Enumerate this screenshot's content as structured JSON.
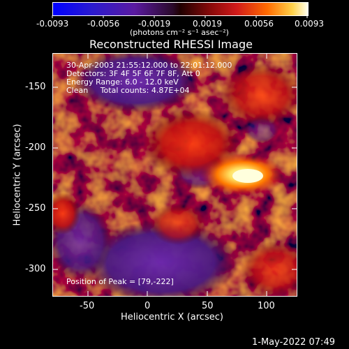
{
  "colorbar": {
    "ticks": [
      "-0.0093",
      "-0.0056",
      "-0.0019",
      "0.0019",
      "0.0056",
      "0.0093"
    ],
    "units": "(photons cm⁻² s⁻¹ asec⁻²)"
  },
  "title": "Reconstructed RHESSI Image",
  "info": {
    "time": "30-Apr-2003 21:55:12.000 to 22:01:12.000",
    "detectors": "Detectors: 3F 4F 5F 6F 7F 8F, Att 0",
    "energy": "Energy Range: 6.0 - 12.0 keV",
    "method": "Clean     Total counts: 4.87E+04"
  },
  "peak": "Position of Peak = [79,-222]",
  "axes": {
    "xlabel": "Heliocentric X (arcsec)",
    "ylabel": "Heliocentric Y (arcsec)",
    "xticks": [
      "-50",
      "0",
      "50",
      "100"
    ],
    "yticks": [
      "-150",
      "-200",
      "-250",
      "-300"
    ]
  },
  "timestamp": "1-May-2022 07:49",
  "colors": {
    "flare_peak": "#ffffcc",
    "flare": "#ff8800",
    "background_low": "#5a1aa0"
  }
}
